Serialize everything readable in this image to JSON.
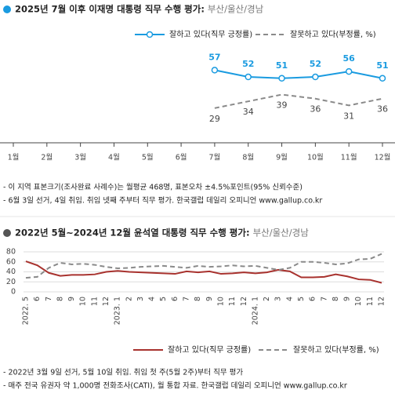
{
  "chart_data": [
    {
      "type": "line",
      "title": "2025년 7월 이후 이재명 대통령 직무 수행 평가:",
      "subtitle": "부산/울산/경남",
      "categories": [
        "1월",
        "2월",
        "3월",
        "4월",
        "5월",
        "6월",
        "7월",
        "8월",
        "9월",
        "10월",
        "11월",
        "12월"
      ],
      "series": [
        {
          "name": "잘하고 있다(직무 긍정률)",
          "color": "#1a9be0",
          "dashed": false,
          "markers": true,
          "values": [
            null,
            null,
            null,
            null,
            null,
            null,
            57,
            52,
            51,
            52,
            56,
            51
          ]
        },
        {
          "name": "잘못하고 있다(부정률, %)",
          "color": "#8a8a8a",
          "dashed": true,
          "markers": false,
          "values": [
            null,
            null,
            null,
            null,
            null,
            null,
            29,
            34,
            39,
            36,
            31,
            36
          ]
        }
      ],
      "notes": [
        "- 이 지역 표본크기(조사완료 사례수)는 월평균 468명, 표본오차 ±4.5%포인트(95% 신뢰수준)",
        "- 6월 3일 선거, 4일 취임. 취임 넷째 주부터 직무 평가. 한국갤럽 데일리 오피니언 www.gallup.co.kr"
      ]
    },
    {
      "type": "line",
      "title": "2022년 5월~2024년 12월 윤석열 대통령 직무 수행 평가:",
      "subtitle": "부산/울산/경남",
      "categories": [
        "2022. 5",
        "6",
        "7",
        "8",
        "9",
        "10",
        "11",
        "12",
        "2023. 1",
        "2",
        "3",
        "4",
        "5",
        "6",
        "7",
        "8",
        "9",
        "10",
        "11",
        "12",
        "2024. 1",
        "2",
        "3",
        "4",
        "5",
        "6",
        "7",
        "8",
        "9",
        "10",
        "11",
        "12"
      ],
      "ylim": [
        0,
        80
      ],
      "yticks": [
        0,
        20,
        40,
        60,
        80
      ],
      "grid": true,
      "series": [
        {
          "name": "잘하고 있다(직무 긍정률)",
          "color": "#a8322e",
          "dashed": false,
          "markers": false,
          "values": [
            61,
            53,
            38,
            32,
            34,
            34,
            35,
            40,
            42,
            40,
            39,
            38,
            37,
            36,
            41,
            39,
            41,
            36,
            37,
            39,
            37,
            39,
            44,
            41,
            29,
            29,
            30,
            35,
            31,
            25,
            24,
            18
          ]
        },
        {
          "name": "잘못하고 있다(부정률, %)",
          "color": "#8a8a8a",
          "dashed": true,
          "markers": false,
          "values": [
            28,
            30,
            48,
            58,
            55,
            56,
            54,
            50,
            47,
            48,
            50,
            51,
            52,
            50,
            48,
            52,
            50,
            51,
            53,
            51,
            52,
            48,
            44,
            48,
            60,
            60,
            58,
            55,
            57,
            65,
            66,
            76
          ]
        }
      ],
      "notes": [
        "- 2022년 3월 9일 선거, 5월 10일 취임. 취임 첫 주(5월 2주)부터 직무 평가",
        "- 매주 전국 유권자 약 1,000명 전화조사(CATI), 월 통합 자료. 한국갤럽 데일리 오피니언 www.gallup.co.kr"
      ]
    }
  ]
}
